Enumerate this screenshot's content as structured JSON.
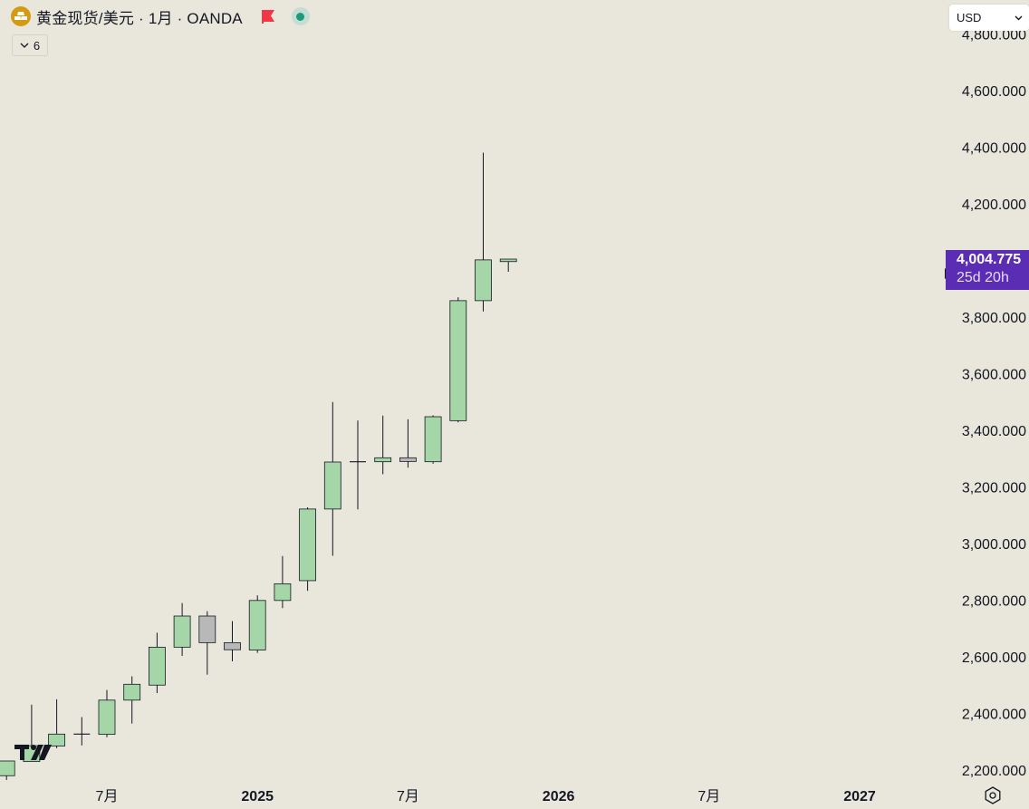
{
  "header": {
    "symbol_title": "黄金现货/美元 · 1月 · OANDA",
    "collapse_count": "6"
  },
  "currency_select": {
    "value": "USD"
  },
  "last_price": {
    "price": "4,004.775",
    "countdown": "25d 20h"
  },
  "colors": {
    "background": "#e9e6dc",
    "candle_up_fill": "#a5d6a7",
    "candle_flat_fill": "#b8b8b8",
    "candle_border": "#131722",
    "last_price_bg": "#5b2db4",
    "logo_bg": "#d49a12",
    "flag_color": "#f23645",
    "status_dot": "#1a9b79"
  },
  "icons": {
    "symbol_logo": "gold-bars-icon",
    "flag": "flag-icon",
    "market_status": "market-open-dot-icon",
    "collapse": "chevron-down-icon",
    "currency_dropdown": "chevron-down-icon",
    "chart_settings": "gear-icon",
    "brand": "tradingview-logo"
  },
  "chart_data": {
    "type": "candlestick",
    "title": "黄金现货/美元 · 1月 · OANDA",
    "y_axis": {
      "side": "right",
      "ticks": [
        2200,
        2400,
        2600,
        2800,
        3000,
        3200,
        3400,
        3600,
        3800,
        4000,
        4200,
        4400,
        4600,
        4800
      ],
      "tick_labels": [
        "2,200.000",
        "2,400.000",
        "2,600.000",
        "2,800.000",
        "3,000.000",
        "3,200.000",
        "3,400.000",
        "3,600.000",
        "3,800.000",
        "4,000.000",
        "4,200.000",
        "4,400.000",
        "4,600.000",
        "4,800.000"
      ]
    },
    "x_axis": {
      "labels": [
        {
          "label": "7月",
          "month": "2024-07"
        },
        {
          "label": "2025",
          "month": "2025-01"
        },
        {
          "label": "7月",
          "month": "2025-07"
        },
        {
          "label": "2026",
          "month": "2026-01"
        },
        {
          "label": "7月",
          "month": "2026-07"
        },
        {
          "label": "2027",
          "month": "2027-01"
        }
      ]
    },
    "grid": false,
    "candles": [
      {
        "month": "2024-03",
        "open": 2180,
        "high": 2222,
        "low": 2165,
        "close": 2232
      },
      {
        "month": "2024-04",
        "open": 2230,
        "high": 2431,
        "low": 2229,
        "close": 2286
      },
      {
        "month": "2024-05",
        "open": 2285,
        "high": 2450,
        "low": 2277,
        "close": 2327
      },
      {
        "month": "2024-06",
        "open": 2327,
        "high": 2387,
        "low": 2287,
        "close": 2327
      },
      {
        "month": "2024-07",
        "open": 2326,
        "high": 2483,
        "low": 2316,
        "close": 2447
      },
      {
        "month": "2024-08",
        "open": 2447,
        "high": 2531,
        "low": 2364,
        "close": 2503
      },
      {
        "month": "2024-09",
        "open": 2500,
        "high": 2685,
        "low": 2472,
        "close": 2634
      },
      {
        "month": "2024-10",
        "open": 2634,
        "high": 2790,
        "low": 2603,
        "close": 2744
      },
      {
        "month": "2024-11",
        "open": 2744,
        "high": 2761,
        "low": 2537,
        "close": 2650
      },
      {
        "month": "2024-12",
        "open": 2650,
        "high": 2726,
        "low": 2584,
        "close": 2625
      },
      {
        "month": "2025-01",
        "open": 2624,
        "high": 2817,
        "low": 2614,
        "close": 2799
      },
      {
        "month": "2025-02",
        "open": 2799,
        "high": 2956,
        "low": 2772,
        "close": 2858
      },
      {
        "month": "2025-03",
        "open": 2869,
        "high": 3128,
        "low": 2833,
        "close": 3122
      },
      {
        "month": "2025-04",
        "open": 3122,
        "high": 3500,
        "low": 2957,
        "close": 3288
      },
      {
        "month": "2025-05",
        "open": 3288,
        "high": 3435,
        "low": 3121,
        "close": 3289
      },
      {
        "month": "2025-06",
        "open": 3289,
        "high": 3452,
        "low": 3245,
        "close": 3303
      },
      {
        "month": "2025-07",
        "open": 3303,
        "high": 3439,
        "low": 3268,
        "close": 3290
      },
      {
        "month": "2025-08",
        "open": 3289,
        "high": 3453,
        "low": 3282,
        "close": 3448
      },
      {
        "month": "2025-09",
        "open": 3434,
        "high": 3870,
        "low": 3428,
        "close": 3858
      },
      {
        "month": "2025-10",
        "open": 3858,
        "high": 4381,
        "low": 3820,
        "close": 4002
      },
      {
        "month": "2025-11",
        "open": 3996,
        "high": 4005,
        "low": 3960,
        "close": 4004.775
      }
    ]
  }
}
